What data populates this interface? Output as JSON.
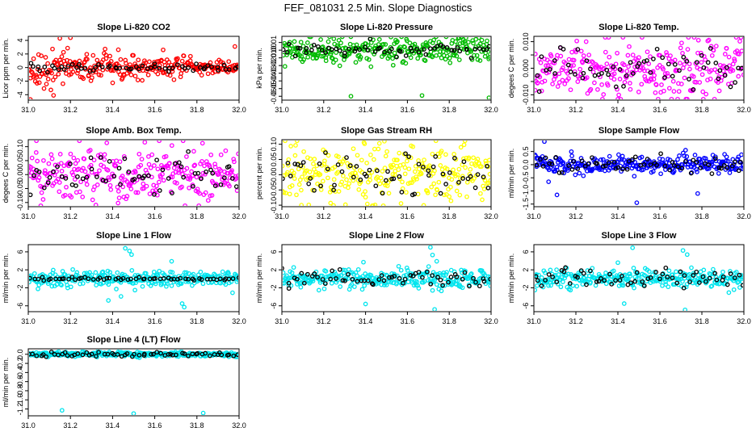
{
  "page": {
    "title": "FEF_081031  2.5 Min. Slope Diagnostics"
  },
  "colors": {
    "red": "#ff0000",
    "green": "#00bb00",
    "magenta": "#ff00ff",
    "yellow": "#ffff00",
    "blue": "#0000ff",
    "cyan": "#00e5ee",
    "black": "#000000"
  },
  "chart_data": [
    {
      "type": "scatter",
      "title": "Slope Li-820 CO2",
      "ylabel": "Licor ppm per min.",
      "xlim": [
        31.0,
        32.0
      ],
      "ylim": [
        -4.8,
        4.6
      ],
      "xticks": [
        31.0,
        31.2,
        31.4,
        31.6,
        31.8,
        32.0
      ],
      "xtick_labels": [
        "31.0",
        "31.2",
        "31.4",
        "31.6",
        "31.8",
        "32.0"
      ],
      "yticks": [
        -4,
        -2,
        0,
        2,
        4
      ],
      "ytick_labels": [
        "-4",
        "-2",
        "0",
        "2",
        "4"
      ],
      "color": "red",
      "noise": 1.2,
      "taper": true,
      "outliers": [
        {
          "x": 31.01,
          "y": -4.7
        },
        {
          "x": 31.15,
          "y": 4.3
        },
        {
          "x": 31.2,
          "y": 4.4
        },
        {
          "x": 31.12,
          "y": -4.1
        },
        {
          "x": 31.64,
          "y": 2.6
        },
        {
          "x": 31.98,
          "y": 3.1
        }
      ],
      "overlay_noise": 0.3
    },
    {
      "type": "scatter",
      "title": "Slope Li-820 Pressure",
      "ylabel": "kPa per min.",
      "xlim": [
        31.0,
        32.0
      ],
      "ylim": [
        -0.065,
        0.018
      ],
      "xticks": [
        31.0,
        31.2,
        31.4,
        31.6,
        31.8,
        32.0
      ],
      "xtick_labels": [
        "31.0",
        "31.2",
        "31.4",
        "31.6",
        "31.8",
        "32.0"
      ],
      "yticks": [
        -0.06,
        -0.05,
        -0.04,
        -0.03,
        -0.02,
        -0.01,
        0.0,
        0.01
      ],
      "ytick_labels": [
        "-0.06",
        "-0.05",
        "-0.04",
        "-0.03",
        "-0.02",
        "-0.01",
        "0.00",
        "0.01"
      ],
      "color": "green",
      "noise": 0.008,
      "taper": false,
      "outliers": [
        {
          "x": 31.33,
          "y": -0.06
        },
        {
          "x": 31.67,
          "y": -0.059
        },
        {
          "x": 31.99,
          "y": -0.062
        },
        {
          "x": 31.88,
          "y": 0.016
        }
      ],
      "overlay_noise": 0.004
    },
    {
      "type": "scatter",
      "title": "Slope Li-820 Temp.",
      "ylabel": "degees C per min.",
      "xlim": [
        31.0,
        32.0
      ],
      "ylim": [
        -0.012,
        0.012
      ],
      "xticks": [
        31.0,
        31.2,
        31.4,
        31.6,
        31.8,
        32.0
      ],
      "xtick_labels": [
        "31.0",
        "31.2",
        "31.4",
        "31.6",
        "31.8",
        "32.0"
      ],
      "yticks": [
        -0.01,
        -0.005,
        0.0,
        0.005,
        0.01
      ],
      "ytick_labels": [
        "-0.010",
        "",
        "0.000",
        "",
        "0.010"
      ],
      "color": "magenta",
      "noise": 0.0055,
      "taper": false,
      "outliers": [],
      "overlay_noise": 0.004
    },
    {
      "type": "scatter",
      "title": "Slope Amb. Box Temp.",
      "ylabel": "degees C per min.",
      "xlim": [
        31.0,
        32.0
      ],
      "ylim": [
        -0.115,
        0.125
      ],
      "xticks": [
        31.0,
        31.2,
        31.4,
        31.6,
        31.8,
        32.0
      ],
      "xtick_labels": [
        "31.0",
        "31.2",
        "31.4",
        "31.6",
        "31.8",
        "32.0"
      ],
      "yticks": [
        -0.1,
        -0.05,
        0.0,
        0.05,
        0.1
      ],
      "ytick_labels": [
        "-0.10",
        "-0.05",
        "0.00",
        "0.05",
        "0.10"
      ],
      "color": "magenta",
      "noise": 0.05,
      "taper": false,
      "outliers": [],
      "overlay_noise": 0.04
    },
    {
      "type": "scatter",
      "title": "Slope Gas Stream RH",
      "ylabel": "percent per min.",
      "xlim": [
        31.0,
        32.0
      ],
      "ylim": [
        -0.105,
        0.115
      ],
      "xticks": [
        31.0,
        31.2,
        31.4,
        31.6,
        31.8,
        32.0
      ],
      "xtick_labels": [
        "31.0",
        "31.2",
        "31.4",
        "31.6",
        "31.8",
        "32.0"
      ],
      "yticks": [
        -0.1,
        -0.05,
        0.0,
        0.05,
        0.1
      ],
      "ytick_labels": [
        "-0.10",
        "-0.05",
        "0.00",
        "0.05",
        "0.10"
      ],
      "color": "yellow",
      "noise": 0.045,
      "taper": false,
      "outliers": [
        {
          "x": 31.49,
          "y": 0.11
        }
      ],
      "overlay_noise": 0.035
    },
    {
      "type": "scatter",
      "title": "Slope Sample Flow",
      "ylabel": "ml/min per min.",
      "xlim": [
        31.0,
        32.0
      ],
      "ylim": [
        -1.6,
        0.95
      ],
      "xticks": [
        31.0,
        31.2,
        31.4,
        31.6,
        31.8,
        32.0
      ],
      "xtick_labels": [
        "31.0",
        "31.2",
        "31.4",
        "31.6",
        "31.8",
        "32.0"
      ],
      "yticks": [
        -1.5,
        -1.0,
        -0.5,
        0.0,
        0.5
      ],
      "ytick_labels": [
        "-1.5",
        "-1.0",
        "-0.5",
        "0.0",
        "0.5"
      ],
      "color": "blue",
      "noise": 0.17,
      "taper": false,
      "outliers": [
        {
          "x": 31.05,
          "y": 0.88
        },
        {
          "x": 31.11,
          "y": -1.15
        },
        {
          "x": 31.07,
          "y": -0.65
        },
        {
          "x": 31.49,
          "y": -1.45
        },
        {
          "x": 31.78,
          "y": -1.1
        }
      ],
      "overlay_noise": 0.15
    },
    {
      "type": "scatter",
      "title": "Slope Line 1 Flow",
      "ylabel": "ml/min per min.",
      "xlim": [
        31.0,
        32.0
      ],
      "ylim": [
        -7.3,
        7.6
      ],
      "xticks": [
        31.0,
        31.2,
        31.4,
        31.6,
        31.8,
        32.0
      ],
      "xtick_labels": [
        "31.0",
        "31.2",
        "31.4",
        "31.6",
        "31.8",
        "32.0"
      ],
      "yticks": [
        -6,
        -2,
        2,
        6
      ],
      "ytick_labels": [
        "-6",
        "-2",
        "2",
        "6"
      ],
      "color": "cyan",
      "noise": 0.9,
      "taper": false,
      "outliers": [
        {
          "x": 31.46,
          "y": 6.8
        },
        {
          "x": 31.48,
          "y": 6.2
        },
        {
          "x": 31.49,
          "y": 5.4
        },
        {
          "x": 31.74,
          "y": -6.3
        },
        {
          "x": 31.73,
          "y": -5.5
        },
        {
          "x": 31.38,
          "y": -4.8
        },
        {
          "x": 31.44,
          "y": -3.9
        },
        {
          "x": 31.68,
          "y": 3.9
        }
      ],
      "overlay_noise": 0.15
    },
    {
      "type": "scatter",
      "title": "Slope Line 2 Flow",
      "ylabel": "ml/min per min.",
      "xlim": [
        31.0,
        32.0
      ],
      "ylim": [
        -7.3,
        7.6
      ],
      "xticks": [
        31.0,
        31.2,
        31.4,
        31.6,
        31.8,
        32.0
      ],
      "xtick_labels": [
        "31.0",
        "31.2",
        "31.4",
        "31.6",
        "31.8",
        "32.0"
      ],
      "yticks": [
        -6,
        -2,
        2,
        6
      ],
      "ytick_labels": [
        "-6",
        "-2",
        "2",
        "6"
      ],
      "color": "cyan",
      "noise": 1.0,
      "taper": false,
      "outliers": [
        {
          "x": 31.71,
          "y": 7.0
        },
        {
          "x": 31.72,
          "y": 5.3
        },
        {
          "x": 31.74,
          "y": 3.9
        },
        {
          "x": 31.4,
          "y": -5.6
        },
        {
          "x": 31.73,
          "y": -6.8
        },
        {
          "x": 31.39,
          "y": 3.7
        }
      ],
      "overlay_noise": 0.9
    },
    {
      "type": "scatter",
      "title": "Slope Line 3 Flow",
      "ylabel": "ml/min per min.",
      "xlim": [
        31.0,
        32.0
      ],
      "ylim": [
        -7.3,
        7.6
      ],
      "xticks": [
        31.0,
        31.2,
        31.4,
        31.6,
        31.8,
        32.0
      ],
      "xtick_labels": [
        "31.0",
        "31.2",
        "31.4",
        "31.6",
        "31.8",
        "32.0"
      ],
      "yticks": [
        -6,
        -2,
        2,
        6
      ],
      "ytick_labels": [
        "-6",
        "-2",
        "2",
        "6"
      ],
      "color": "cyan",
      "noise": 1.0,
      "taper": false,
      "outliers": [
        {
          "x": 31.47,
          "y": 6.9
        },
        {
          "x": 31.71,
          "y": 6.3
        },
        {
          "x": 31.73,
          "y": 5.4
        },
        {
          "x": 31.43,
          "y": -5.5
        },
        {
          "x": 31.72,
          "y": -6.9
        },
        {
          "x": 31.4,
          "y": 3.6
        }
      ],
      "overlay_noise": 0.9
    },
    {
      "type": "scatter",
      "title": "Slope Line 4 (LT) Flow",
      "ylabel": "ml/min per min.",
      "xlim": [
        31.0,
        32.0
      ],
      "ylim": [
        -1.35,
        0.12
      ],
      "xticks": [
        31.0,
        31.2,
        31.4,
        31.6,
        31.8,
        32.0
      ],
      "xtick_labels": [
        "31.0",
        "31.2",
        "31.4",
        "31.6",
        "31.8",
        "32.0"
      ],
      "yticks": [
        -1.2,
        -1.0,
        -0.8,
        -0.6,
        -0.4,
        -0.2,
        0.0
      ],
      "ytick_labels": [
        "-1.2",
        "-1.0",
        "-0.8",
        "-0.6",
        "-0.4",
        "-0.2",
        "0.0"
      ],
      "color": "cyan",
      "noise": 0.025,
      "taper": false,
      "outliers": [
        {
          "x": 31.16,
          "y": -1.23
        },
        {
          "x": 31.5,
          "y": -1.3
        },
        {
          "x": 31.83,
          "y": -1.29
        }
      ],
      "overlay_noise": 0.03
    }
  ]
}
